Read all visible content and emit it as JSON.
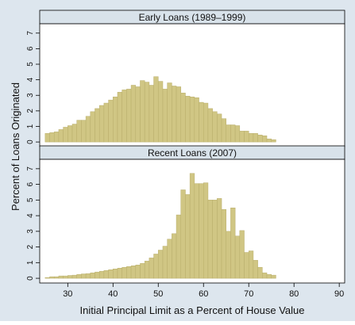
{
  "chart_data": {
    "type": "bar",
    "subtype": "histogram",
    "xlabel": "Initial Principal Limit as a Percent of House Value",
    "ylabel": "Percent of Loans Originated",
    "x_ticks": [
      30,
      40,
      50,
      60,
      70,
      80,
      90
    ],
    "y_ticks": [
      0,
      1,
      2,
      3,
      4,
      5,
      6,
      7
    ],
    "xlim": [
      23.8,
      91.2
    ],
    "ylim": [
      -0.3,
      7.6
    ],
    "bin_width": 1,
    "bin_start": 25,
    "grid": false,
    "bar_color": "#d0c684",
    "bar_edge_color": "#b8ad6a",
    "panel_background": "#ffffff",
    "outer_background": "#dde6ee",
    "strip_background": "#d8e2ea",
    "panels": [
      {
        "title": "Early Loans (1989–1999)",
        "values": [
          0.55,
          0.6,
          0.65,
          0.8,
          0.95,
          1.05,
          1.15,
          1.4,
          1.4,
          1.65,
          1.95,
          2.15,
          2.35,
          2.5,
          2.7,
          2.9,
          3.2,
          3.35,
          3.4,
          3.65,
          3.55,
          3.95,
          3.85,
          3.65,
          4.2,
          3.9,
          3.4,
          3.8,
          3.6,
          3.55,
          3.15,
          2.95,
          2.9,
          2.85,
          2.55,
          2.5,
          2.15,
          1.95,
          1.8,
          1.5,
          1.1,
          1.1,
          1.05,
          0.7,
          0.7,
          0.55,
          0.55,
          0.45,
          0.4,
          0.2,
          0.15
        ]
      },
      {
        "title": "Recent Loans (2007)",
        "values": [
          0.05,
          0.1,
          0.1,
          0.15,
          0.15,
          0.18,
          0.2,
          0.25,
          0.28,
          0.3,
          0.35,
          0.4,
          0.45,
          0.5,
          0.55,
          0.6,
          0.65,
          0.7,
          0.75,
          0.8,
          0.85,
          0.95,
          1.1,
          1.3,
          1.55,
          1.8,
          2.05,
          2.5,
          2.85,
          4.05,
          5.65,
          5.35,
          6.7,
          6.05,
          6.05,
          6.1,
          5.0,
          5.0,
          5.1,
          4.4,
          3.0,
          4.5,
          2.7,
          3.05,
          1.65,
          1.75,
          1.15,
          0.7,
          0.35,
          0.25,
          0.2
        ]
      }
    ]
  }
}
